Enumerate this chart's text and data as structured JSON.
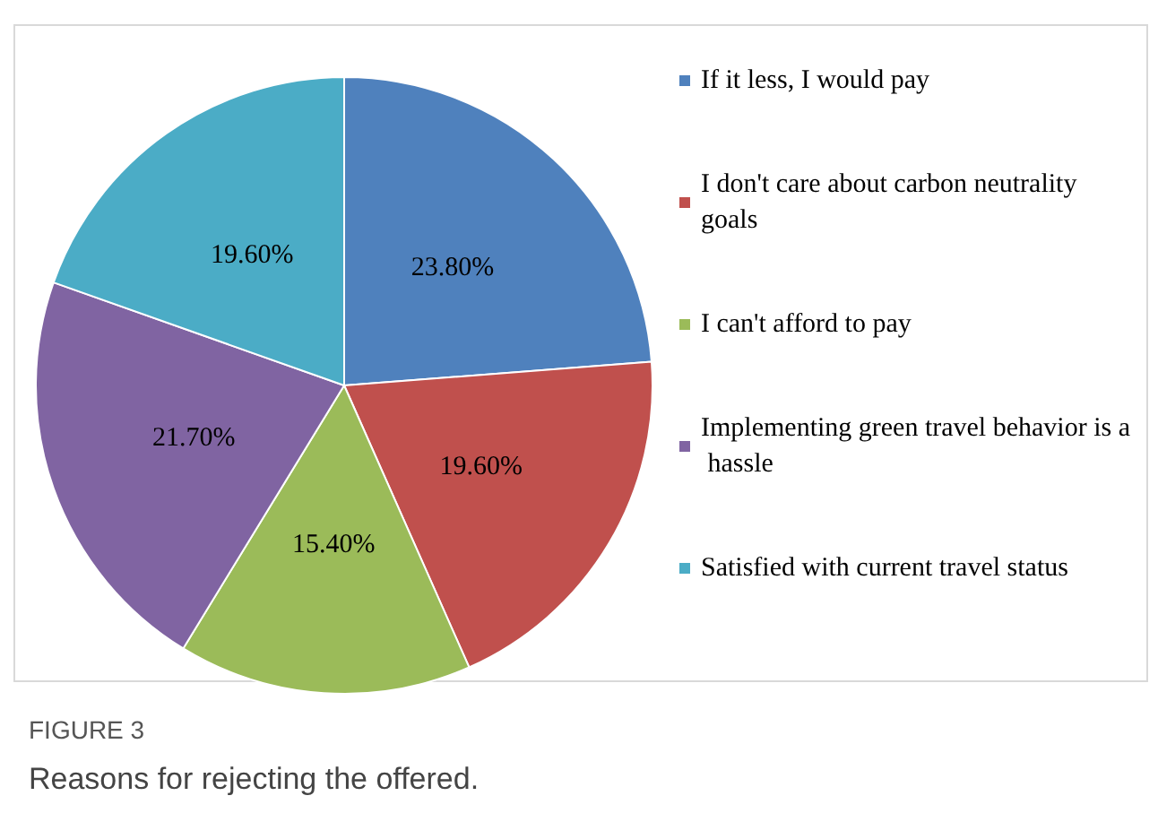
{
  "chart_data": {
    "type": "pie",
    "categories": [
      "If it less, I would pay",
      "I don't care about carbon neutrality goals",
      "I can't afford to pay",
      "Implementing green travel behavior is a hassle",
      "Satisfied with current travel status"
    ],
    "values": [
      23.8,
      19.6,
      15.4,
      21.7,
      19.6
    ],
    "value_labels": [
      "23.80%",
      "19.60%",
      "15.40%",
      "21.70%",
      "19.60%"
    ],
    "colors": [
      "#4f81bd",
      "#c0504d",
      "#9bbb59",
      "#8064a2",
      "#4bacc6"
    ],
    "legend": "right",
    "annotations": [
      "FIGURE 3",
      "Reasons for rejecting the offered."
    ]
  }
}
